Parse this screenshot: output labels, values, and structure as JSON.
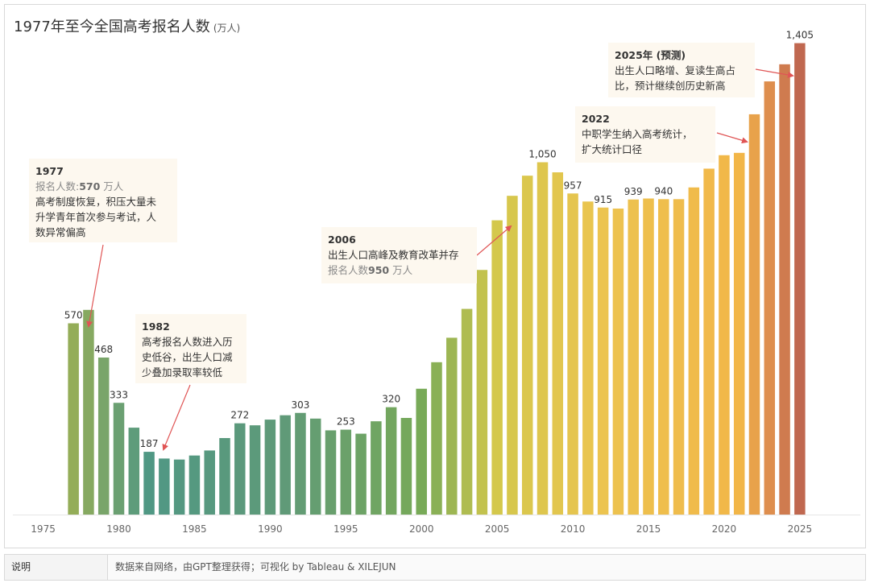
{
  "title": {
    "main": "1977年至今全国高考报名人数",
    "sub": "(万人)"
  },
  "chart_data": {
    "type": "bar",
    "title": "1977年至今全国高考报名人数 (万人)",
    "xlabel": "",
    "ylabel": "",
    "xlim": [
      1973,
      2029
    ],
    "ylim": [
      0,
      1500
    ],
    "x_ticks": [
      1975,
      1980,
      1985,
      1990,
      1995,
      2000,
      2005,
      2010,
      2015,
      2020,
      2025
    ],
    "years": [
      1977,
      1978,
      1979,
      1980,
      1981,
      1982,
      1983,
      1984,
      1985,
      1986,
      1987,
      1988,
      1989,
      1990,
      1991,
      1992,
      1993,
      1994,
      1995,
      1996,
      1997,
      1998,
      1999,
      2000,
      2001,
      2002,
      2003,
      2004,
      2005,
      2006,
      2007,
      2008,
      2009,
      2010,
      2011,
      2012,
      2013,
      2014,
      2015,
      2016,
      2017,
      2018,
      2019,
      2020,
      2021,
      2022,
      2023,
      2024,
      2025
    ],
    "values": [
      570,
      610,
      468,
      333,
      259,
      187,
      167,
      164,
      176,
      191,
      228,
      272,
      266,
      283,
      296,
      303,
      286,
      251,
      253,
      241,
      278,
      320,
      288,
      375,
      454,
      527,
      613,
      729,
      877,
      950,
      1010,
      1050,
      1020,
      957,
      933,
      915,
      912,
      939,
      942,
      940,
      940,
      975,
      1031,
      1071,
      1078,
      1193,
      1291,
      1342,
      1405
    ],
    "labeled": {
      "1977": "570",
      "1979": "468",
      "1980": "333",
      "1982": "187",
      "1988": "272",
      "1992": "303",
      "1995": "253",
      "1998": "320",
      "2008": "1,050",
      "2010": "957",
      "2012": "915",
      "2014": "939",
      "2016": "940",
      "2025": "1,405"
    }
  },
  "annotations": [
    {
      "id": "1977",
      "year": "1977",
      "lines": [
        {
          "pre": "报名人数:",
          "bold": "570",
          "post": " 万人",
          "muted": true
        },
        {
          "text": "高考制度恢复，积压大量未"
        },
        {
          "text": "升学青年首次参与考试，人"
        },
        {
          "text": "数异常偏高"
        }
      ]
    },
    {
      "id": "1982",
      "year": "1982",
      "lines": [
        {
          "text": "高考报名人数进入历"
        },
        {
          "text": "史低谷，出生人口减"
        },
        {
          "text": "少叠加录取率较低"
        }
      ]
    },
    {
      "id": "2006",
      "year": "2006",
      "lines": [
        {
          "text": "出生人口高峰及教育改革并存"
        },
        {
          "pre": "报名人数",
          "bold": "950",
          "post": " 万人",
          "muted": true
        }
      ]
    },
    {
      "id": "2022",
      "year": "2022",
      "lines": [
        {
          "text": "中职学生纳入高考统计，"
        },
        {
          "text": "扩大统计口径"
        }
      ]
    },
    {
      "id": "2025",
      "year": "2025年 (预测)",
      "lines": [
        {
          "text": "出生人口略增、复读生高占"
        },
        {
          "text": "比，预计继续创历史新高"
        }
      ]
    }
  ],
  "footer": {
    "label": "说明",
    "text": "数据来自网络，由GPT整理获得；可视化 by Tableau & XILEJUN"
  },
  "colors": {
    "arrow": "#e05555",
    "note_bg": "#fdf8ef"
  }
}
